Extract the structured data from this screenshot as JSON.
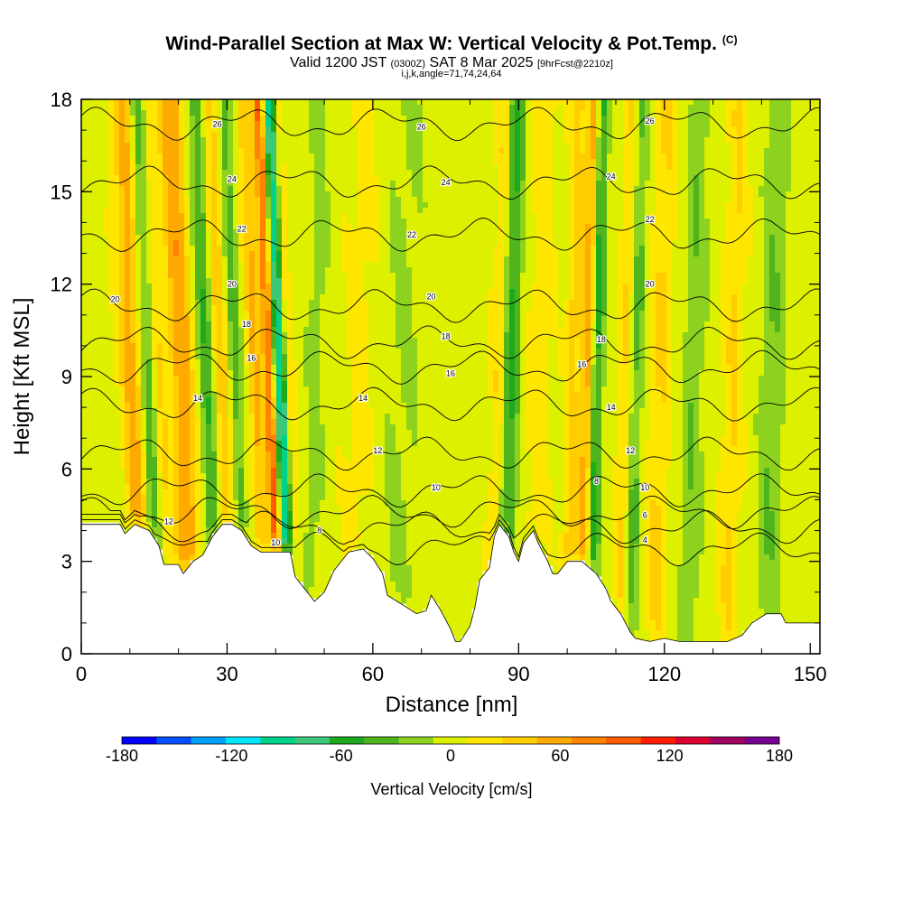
{
  "header": {
    "title": "Wind-Parallel Section at Max W: Vertical Velocity & Pot.Temp.",
    "copyright": "(C)",
    "valid_prefix": "Valid 1200 JST",
    "valid_utc": "(0300Z)",
    "valid_date": "SAT 8 Mar 2025",
    "forecast": "[9hrFcst@2210z]",
    "indices": "i,j,k,angle=71,74,24,64"
  },
  "chart_data": {
    "type": "heatmap",
    "xlabel": "Distance [nm]",
    "ylabel": "Height [Kft MSL]",
    "xlim": [
      0,
      152
    ],
    "ylim": [
      0,
      18
    ],
    "xticks": [
      "0",
      "30",
      "60",
      "90",
      "120",
      "150"
    ],
    "yticks": [
      "0",
      "3",
      "6",
      "9",
      "12",
      "15",
      "18"
    ],
    "terrain_kft": [
      [
        0,
        4.2
      ],
      [
        5,
        4.2
      ],
      [
        8,
        4.2
      ],
      [
        9,
        3.9
      ],
      [
        11,
        4.2
      ],
      [
        14,
        4.0
      ],
      [
        16,
        3.5
      ],
      [
        17,
        2.9
      ],
      [
        20,
        2.9
      ],
      [
        21,
        2.6
      ],
      [
        23,
        3.0
      ],
      [
        25,
        3.2
      ],
      [
        27,
        3.8
      ],
      [
        29,
        4.2
      ],
      [
        31,
        4.2
      ],
      [
        33,
        4.0
      ],
      [
        35,
        3.5
      ],
      [
        37,
        3.3
      ],
      [
        39,
        3.3
      ],
      [
        41,
        3.3
      ],
      [
        43,
        3.3
      ],
      [
        44,
        2.5
      ],
      [
        46,
        2.1
      ],
      [
        48,
        1.7
      ],
      [
        50,
        2.0
      ],
      [
        52,
        2.7
      ],
      [
        55,
        3.3
      ],
      [
        58,
        3.4
      ],
      [
        60,
        3.1
      ],
      [
        62,
        2.6
      ],
      [
        63,
        1.9
      ],
      [
        65,
        1.7
      ],
      [
        67,
        1.5
      ],
      [
        69,
        1.3
      ],
      [
        71,
        1.4
      ],
      [
        72,
        1.9
      ],
      [
        74,
        1.4
      ],
      [
        76,
        0.8
      ],
      [
        77,
        0.4
      ],
      [
        78,
        0.4
      ],
      [
        80,
        0.9
      ],
      [
        81,
        1.5
      ],
      [
        82,
        2.4
      ],
      [
        84,
        2.8
      ],
      [
        85,
        3.8
      ],
      [
        86,
        4.2
      ],
      [
        88,
        3.8
      ],
      [
        89,
        3.3
      ],
      [
        90,
        3.0
      ],
      [
        91,
        3.6
      ],
      [
        93,
        4.0
      ],
      [
        94,
        3.6
      ],
      [
        96,
        3.0
      ],
      [
        97,
        2.6
      ],
      [
        98,
        2.6
      ],
      [
        100,
        3.0
      ],
      [
        103,
        3.0
      ],
      [
        106,
        2.6
      ],
      [
        108,
        2.1
      ],
      [
        109,
        1.7
      ],
      [
        111,
        1.3
      ],
      [
        112,
        1.0
      ],
      [
        113,
        0.7
      ],
      [
        114,
        0.5
      ],
      [
        117,
        0.4
      ],
      [
        120,
        0.5
      ],
      [
        123,
        0.4
      ],
      [
        128,
        0.4
      ],
      [
        133,
        0.4
      ],
      [
        136,
        0.6
      ],
      [
        138,
        1.0
      ],
      [
        141,
        1.3
      ],
      [
        144,
        1.3
      ],
      [
        145,
        1.0
      ],
      [
        148,
        1.0
      ],
      [
        150,
        1.0
      ],
      [
        152,
        1.0
      ]
    ],
    "theta_contours": [
      {
        "level": 4,
        "base_kft": 3.4
      },
      {
        "level": 6,
        "base_kft": 4.1
      },
      {
        "level": 8,
        "base_kft": 4.6
      },
      {
        "level": 10,
        "base_kft": 5.3
      },
      {
        "level": 12,
        "base_kft": 6.5
      },
      {
        "level": 14,
        "base_kft": 8.1
      },
      {
        "level": 16,
        "base_kft": 9.3
      },
      {
        "level": 18,
        "base_kft": 10.1
      },
      {
        "level": 20,
        "base_kft": 11.3
      },
      {
        "level": 22,
        "base_kft": 13.6
      },
      {
        "level": 24,
        "base_kft": 15.3
      },
      {
        "level": 26,
        "base_kft": 17.2
      }
    ],
    "contour_labels": [
      {
        "text": "26",
        "x": 28,
        "y": 17.2
      },
      {
        "text": "26",
        "x": 70,
        "y": 17.1
      },
      {
        "text": "26",
        "x": 117,
        "y": 17.3
      },
      {
        "text": "24",
        "x": 31,
        "y": 15.4
      },
      {
        "text": "24",
        "x": 75,
        "y": 15.3
      },
      {
        "text": "24",
        "x": 109,
        "y": 15.5
      },
      {
        "text": "22",
        "x": 33,
        "y": 13.8
      },
      {
        "text": "22",
        "x": 68,
        "y": 13.6
      },
      {
        "text": "22",
        "x": 117,
        "y": 14.1
      },
      {
        "text": "20",
        "x": 7,
        "y": 11.5
      },
      {
        "text": "20",
        "x": 31,
        "y": 12.0
      },
      {
        "text": "20",
        "x": 72,
        "y": 11.6
      },
      {
        "text": "20",
        "x": 117,
        "y": 12.0
      },
      {
        "text": "18",
        "x": 34,
        "y": 10.7
      },
      {
        "text": "18",
        "x": 75,
        "y": 10.3
      },
      {
        "text": "18",
        "x": 107,
        "y": 10.2
      },
      {
        "text": "16",
        "x": 35,
        "y": 9.6
      },
      {
        "text": "16",
        "x": 76,
        "y": 9.1
      },
      {
        "text": "16",
        "x": 103,
        "y": 9.4
      },
      {
        "text": "14",
        "x": 24,
        "y": 8.3
      },
      {
        "text": "14",
        "x": 58,
        "y": 8.3
      },
      {
        "text": "14",
        "x": 109,
        "y": 8.0
      },
      {
        "text": "12",
        "x": 61,
        "y": 6.6
      },
      {
        "text": "12",
        "x": 113,
        "y": 6.6
      },
      {
        "text": "10",
        "x": 73,
        "y": 5.4
      },
      {
        "text": "10",
        "x": 116,
        "y": 5.4
      },
      {
        "text": "10",
        "x": 40,
        "y": 3.6
      },
      {
        "text": "12",
        "x": 18,
        "y": 4.3
      },
      {
        "text": "8",
        "x": 49,
        "y": 4.0
      },
      {
        "text": "8",
        "x": 106,
        "y": 5.6
      },
      {
        "text": "6",
        "x": 116,
        "y": 4.5
      },
      {
        "text": "4",
        "x": 116,
        "y": 3.7
      }
    ],
    "colorbar": {
      "label": "Vertical Velocity [cm/s]",
      "min": -180,
      "max": 180,
      "step": 20,
      "ticks": [
        "-180",
        "-120",
        "-60",
        "0",
        "60",
        "120",
        "180"
      ],
      "colors": [
        "#0000ff",
        "#0050ff",
        "#00a0ff",
        "#00e6ff",
        "#00d28c",
        "#3cc878",
        "#1eaa1e",
        "#50b41e",
        "#8cd21e",
        "#dcf000",
        "#ffe600",
        "#ffcd00",
        "#ffaa00",
        "#ff8200",
        "#ff5a00",
        "#ff1e00",
        "#dc0032",
        "#a00060",
        "#780090"
      ]
    },
    "velocity_features": [
      {
        "x": 11,
        "w": 2.5,
        "v": 60
      },
      {
        "x": 14,
        "w": 2.0,
        "v": -60
      },
      {
        "x": 16,
        "w": 1.6,
        "v": 40
      },
      {
        "x": 20,
        "w": 1.8,
        "v": 50
      },
      {
        "x": 22,
        "w": 1.5,
        "v": 40
      },
      {
        "x": 26,
        "w": 1.5,
        "v": -50
      },
      {
        "x": 29,
        "w": 1.5,
        "v": 40
      },
      {
        "x": 32,
        "w": 1.3,
        "v": -40
      },
      {
        "x": 36,
        "w": 1.4,
        "v": 50
      },
      {
        "x": 39,
        "w": 1.2,
        "v": 100
      },
      {
        "x": 41,
        "w": 1.4,
        "v": -110
      },
      {
        "x": 43,
        "w": 1.0,
        "v": 30
      },
      {
        "x": 48,
        "w": 2.0,
        "v": -20
      },
      {
        "x": 57,
        "w": 3.0,
        "v": 15
      },
      {
        "x": 66,
        "w": 4.0,
        "v": -15
      },
      {
        "x": 86,
        "w": 1.6,
        "v": 40
      },
      {
        "x": 88,
        "w": 2.0,
        "v": -60
      },
      {
        "x": 94,
        "w": 2.5,
        "v": 20
      },
      {
        "x": 101,
        "w": 1.5,
        "v": 40
      },
      {
        "x": 104,
        "w": 1.2,
        "v": 60
      },
      {
        "x": 106,
        "w": 1.3,
        "v": -60
      },
      {
        "x": 112,
        "w": 1.5,
        "v": 30
      },
      {
        "x": 114,
        "w": 1.5,
        "v": -40
      },
      {
        "x": 119,
        "w": 2.0,
        "v": 30
      },
      {
        "x": 126,
        "w": 2.0,
        "v": -30
      },
      {
        "x": 134,
        "w": 2.0,
        "v": 30
      },
      {
        "x": 142,
        "w": 2.5,
        "v": -30
      }
    ]
  }
}
